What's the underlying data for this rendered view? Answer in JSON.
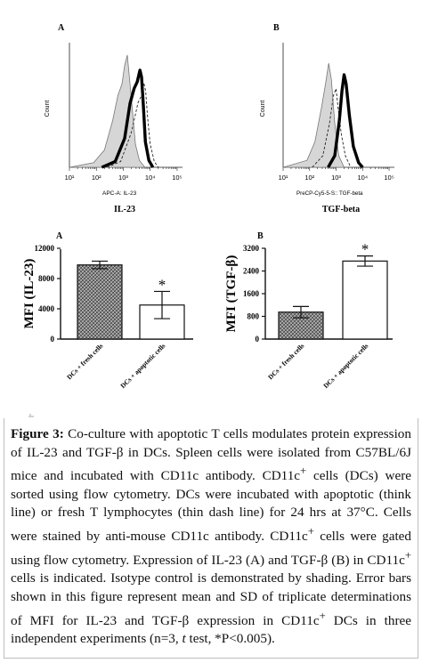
{
  "chart_data": [
    {
      "type": "histogram",
      "panel_label": "A",
      "title": "IL-23",
      "xlabel": "APC-A: IL-23",
      "ylabel": "Count",
      "x_ticks": [
        "10¹",
        "10²",
        "10³",
        "10⁴",
        "10⁵"
      ],
      "x_tick_values": [
        1,
        2,
        3,
        4,
        5
      ],
      "series": [
        {
          "style": "shaded",
          "points": [
            [
              1.0,
              0
            ],
            [
              1.9,
              0.04
            ],
            [
              2.3,
              0.15
            ],
            [
              2.6,
              0.4
            ],
            [
              2.8,
              0.62
            ],
            [
              2.95,
              0.72
            ],
            [
              3.05,
              0.88
            ],
            [
              3.15,
              0.97
            ],
            [
              3.3,
              0.6
            ],
            [
              3.45,
              0.2
            ],
            [
              3.6,
              0.06
            ],
            [
              3.8,
              0
            ]
          ]
        },
        {
          "style": "thick",
          "points": [
            [
              2.2,
              0
            ],
            [
              2.7,
              0.05
            ],
            [
              3.05,
              0.25
            ],
            [
              3.25,
              0.55
            ],
            [
              3.4,
              0.68
            ],
            [
              3.52,
              0.74
            ],
            [
              3.62,
              0.84
            ],
            [
              3.68,
              0.78
            ],
            [
              3.74,
              0.55
            ],
            [
              3.82,
              0.22
            ],
            [
              3.95,
              0.06
            ],
            [
              4.1,
              0
            ]
          ]
        },
        {
          "style": "dashed",
          "points": [
            [
              2.4,
              0
            ],
            [
              2.9,
              0.05
            ],
            [
              3.3,
              0.3
            ],
            [
              3.55,
              0.56
            ],
            [
              3.68,
              0.62
            ],
            [
              3.76,
              0.73
            ],
            [
              3.83,
              0.66
            ],
            [
              3.9,
              0.44
            ],
            [
              4.0,
              0.2
            ],
            [
              4.15,
              0.05
            ],
            [
              4.3,
              0
            ]
          ]
        }
      ]
    },
    {
      "type": "histogram",
      "panel_label": "B",
      "title": "TGF-beta",
      "xlabel": "PreCP-Cy5-5-S:: TGF-beta",
      "ylabel": "Count",
      "x_ticks": [
        "10¹",
        "10²",
        "10³",
        "10⁴",
        "10⁵"
      ],
      "x_tick_values": [
        1,
        2,
        3,
        4,
        5
      ],
      "series": [
        {
          "style": "shaded",
          "points": [
            [
              1.0,
              0
            ],
            [
              1.9,
              0.06
            ],
            [
              2.2,
              0.22
            ],
            [
              2.45,
              0.52
            ],
            [
              2.6,
              0.72
            ],
            [
              2.72,
              0.9
            ],
            [
              2.82,
              0.76
            ],
            [
              2.95,
              0.38
            ],
            [
              3.1,
              0.1
            ],
            [
              3.3,
              0
            ]
          ]
        },
        {
          "style": "thick",
          "points": [
            [
              2.7,
              0
            ],
            [
              2.95,
              0.1
            ],
            [
              3.12,
              0.4
            ],
            [
              3.22,
              0.66
            ],
            [
              3.3,
              0.8
            ],
            [
              3.38,
              0.72
            ],
            [
              3.5,
              0.45
            ],
            [
              3.65,
              0.18
            ],
            [
              3.85,
              0.04
            ],
            [
              4.0,
              0
            ]
          ]
        },
        {
          "style": "dashed",
          "points": [
            [
              2.1,
              0
            ],
            [
              2.5,
              0.1
            ],
            [
              2.75,
              0.38
            ],
            [
              2.9,
              0.62
            ],
            [
              3.0,
              0.68
            ],
            [
              3.08,
              0.5
            ],
            [
              3.2,
              0.28
            ],
            [
              3.35,
              0.1
            ],
            [
              3.55,
              0
            ]
          ]
        }
      ]
    },
    {
      "type": "bar",
      "panel_label": "A",
      "ylabel": "MFI (IL-23)",
      "categories": [
        "DCs + fresh cells",
        "DCs + apoptotic cells"
      ],
      "values": [
        9800,
        4500
      ],
      "errors": [
        500,
        1800
      ],
      "ylim": [
        0,
        12000
      ],
      "y_ticks": [
        0,
        4000,
        8000,
        12000
      ],
      "y_tick_labels": [
        "0",
        "4000",
        "8000",
        "12000"
      ],
      "significance": [
        "",
        "*"
      ],
      "bar_fills": [
        "hatched",
        "white"
      ]
    },
    {
      "type": "bar",
      "panel_label": "B",
      "ylabel": "MFI (TGF-β)",
      "categories": [
        "DCs + fresh cells",
        "DCs + apoptotic cells"
      ],
      "values": [
        950,
        2750
      ],
      "errors": [
        200,
        180
      ],
      "ylim": [
        0,
        3200
      ],
      "y_ticks": [
        0,
        800,
        1600,
        2400,
        3200
      ],
      "y_tick_labels": [
        "0",
        "800",
        "1600",
        "2400",
        "3200"
      ],
      "significance": [
        "",
        "*"
      ],
      "bar_fills": [
        "hatched",
        "white"
      ]
    }
  ],
  "caption": {
    "label": "Figure 3:",
    "part1": " Co-culture with apoptotic T cells modulates protein expression of IL-23 and TGF-β in DCs. Spleen cells were isolated from C57BL/6J mice and incubated with CD11c antibody. CD11c",
    "sup1": "+",
    "part2": " cells (DCs) were sorted using flow cytometry. DCs were incubated with apoptotic (think line) or fresh T lymphocytes (thin dash line) for 24 hrs at 37°C. Cells were stained by anti-mouse CD11c antibody. CD11c",
    "sup2": "+",
    "part3": " cells were gated using flow cytometry. Expression of IL-23 (A) and TGF-β (B) in CD11c",
    "sup3": "+",
    "part4": " cells is indicated. Isotype control is demonstrated by shading. Error bars shown in this figure represent mean and SD of triplicate determinations of MFI for IL-23 and TGF-β expression in CD11c",
    "sup4": "+",
    "part5": " DCs in three independent experiments (n=3, ",
    "ttest": "t",
    "part6": " test, *P<0.005)."
  }
}
